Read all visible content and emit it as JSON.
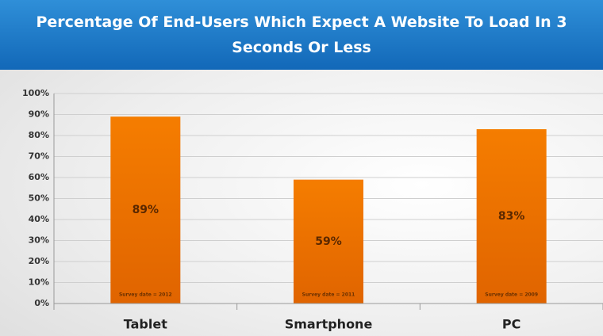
{
  "chart_data": {
    "type": "bar",
    "title": "Percentage Of End-Users Which Expect A Website To Load In 3 Seconds Or Less",
    "categories": [
      "Tablet",
      "Smartphone",
      "PC"
    ],
    "values": [
      89,
      59,
      83
    ],
    "value_labels": [
      "89%",
      "59%",
      "83%"
    ],
    "annotations": [
      "Survey date = 2012",
      "Survey date = 2011",
      "Survey date = 2009"
    ],
    "color": "#f07800",
    "ylim": [
      0,
      100
    ],
    "yticks": [
      {
        "value": 0,
        "label": "0%"
      },
      {
        "value": 10,
        "label": "10%"
      },
      {
        "value": 20,
        "label": "20%"
      },
      {
        "value": 30,
        "label": "30%"
      },
      {
        "value": 40,
        "label": "40%"
      },
      {
        "value": 50,
        "label": "50%"
      },
      {
        "value": 60,
        "label": "60%"
      },
      {
        "value": 70,
        "label": "70%"
      },
      {
        "value": 80,
        "label": "80%"
      },
      {
        "value": 90,
        "label": "90%"
      },
      {
        "value": 100,
        "label": "100%"
      }
    ],
    "grid": true
  }
}
